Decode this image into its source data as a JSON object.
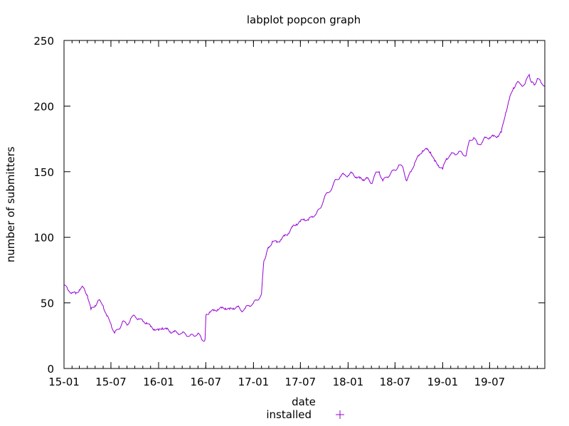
{
  "chart_data": {
    "type": "line",
    "title": "labplot popcon graph",
    "xlabel": "date",
    "ylabel": "number of submitters",
    "ylim": [
      0,
      250
    ],
    "yticks": [
      0,
      50,
      100,
      150,
      200,
      250
    ],
    "xlim": [
      "2015-01-01",
      "2020-01-30"
    ],
    "xticks": [
      {
        "date": "2015-01-01",
        "label": "15-01"
      },
      {
        "date": "2015-07-01",
        "label": "15-07"
      },
      {
        "date": "2016-01-01",
        "label": "16-01"
      },
      {
        "date": "2016-07-01",
        "label": "16-07"
      },
      {
        "date": "2017-01-01",
        "label": "17-01"
      },
      {
        "date": "2017-07-01",
        "label": "17-07"
      },
      {
        "date": "2018-01-01",
        "label": "18-01"
      },
      {
        "date": "2018-07-01",
        "label": "18-07"
      },
      {
        "date": "2019-01-01",
        "label": "19-01"
      },
      {
        "date": "2019-07-01",
        "label": "19-07"
      }
    ],
    "grid": false,
    "legend_position": "bottom-center",
    "series": [
      {
        "name": "installed",
        "color": "#9400d3",
        "marker": "+",
        "points": [
          [
            "2015-01-01",
            64
          ],
          [
            "2015-01-15",
            60
          ],
          [
            "2015-02-01",
            58
          ],
          [
            "2015-02-15",
            57
          ],
          [
            "2015-03-01",
            60
          ],
          [
            "2015-03-15",
            62
          ],
          [
            "2015-04-01",
            56
          ],
          [
            "2015-04-15",
            45
          ],
          [
            "2015-05-01",
            48
          ],
          [
            "2015-05-15",
            52
          ],
          [
            "2015-06-01",
            48
          ],
          [
            "2015-06-15",
            40
          ],
          [
            "2015-07-01",
            34
          ],
          [
            "2015-07-15",
            27
          ],
          [
            "2015-08-01",
            30
          ],
          [
            "2015-08-15",
            36
          ],
          [
            "2015-09-01",
            33
          ],
          [
            "2015-09-15",
            38
          ],
          [
            "2015-10-01",
            40
          ],
          [
            "2015-10-15",
            38
          ],
          [
            "2015-11-01",
            36
          ],
          [
            "2015-11-15",
            35
          ],
          [
            "2015-12-01",
            32
          ],
          [
            "2015-12-15",
            30
          ],
          [
            "2016-01-01",
            29
          ],
          [
            "2016-01-15",
            31
          ],
          [
            "2016-02-01",
            30
          ],
          [
            "2016-02-15",
            28
          ],
          [
            "2016-03-01",
            28
          ],
          [
            "2016-03-15",
            27
          ],
          [
            "2016-04-01",
            27
          ],
          [
            "2016-04-15",
            26
          ],
          [
            "2016-05-01",
            25
          ],
          [
            "2016-05-15",
            25
          ],
          [
            "2016-06-01",
            27
          ],
          [
            "2016-06-15",
            22
          ],
          [
            "2016-06-28",
            22
          ],
          [
            "2016-07-02",
            41
          ],
          [
            "2016-07-15",
            43
          ],
          [
            "2016-08-01",
            44
          ],
          [
            "2016-08-15",
            45
          ],
          [
            "2016-09-01",
            46
          ],
          [
            "2016-09-15",
            46
          ],
          [
            "2016-10-01",
            45
          ],
          [
            "2016-10-15",
            46
          ],
          [
            "2016-11-01",
            47
          ],
          [
            "2016-11-15",
            44
          ],
          [
            "2016-12-01",
            46
          ],
          [
            "2016-12-15",
            48
          ],
          [
            "2017-01-01",
            50
          ],
          [
            "2017-01-15",
            52
          ],
          [
            "2017-02-01",
            57
          ],
          [
            "2017-02-10",
            82
          ],
          [
            "2017-02-20",
            88
          ],
          [
            "2017-03-01",
            92
          ],
          [
            "2017-03-15",
            97
          ],
          [
            "2017-04-01",
            96
          ],
          [
            "2017-04-15",
            98
          ],
          [
            "2017-05-01",
            101
          ],
          [
            "2017-05-15",
            103
          ],
          [
            "2017-06-01",
            108
          ],
          [
            "2017-06-15",
            110
          ],
          [
            "2017-07-01",
            112
          ],
          [
            "2017-07-15",
            114
          ],
          [
            "2017-08-01",
            113
          ],
          [
            "2017-08-15",
            116
          ],
          [
            "2017-09-01",
            118
          ],
          [
            "2017-09-15",
            122
          ],
          [
            "2017-10-01",
            130
          ],
          [
            "2017-10-15",
            134
          ],
          [
            "2017-11-01",
            138
          ],
          [
            "2017-11-15",
            144
          ],
          [
            "2017-12-01",
            146
          ],
          [
            "2017-12-15",
            148
          ],
          [
            "2018-01-01",
            147
          ],
          [
            "2018-01-15",
            149
          ],
          [
            "2018-02-01",
            146
          ],
          [
            "2018-02-15",
            145
          ],
          [
            "2018-03-01",
            144
          ],
          [
            "2018-03-15",
            145
          ],
          [
            "2018-04-01",
            141
          ],
          [
            "2018-04-15",
            148
          ],
          [
            "2018-05-01",
            150
          ],
          [
            "2018-05-15",
            143
          ],
          [
            "2018-06-01",
            146
          ],
          [
            "2018-06-15",
            149
          ],
          [
            "2018-07-01",
            151
          ],
          [
            "2018-07-15",
            155
          ],
          [
            "2018-08-01",
            153
          ],
          [
            "2018-08-15",
            143
          ],
          [
            "2018-09-01",
            150
          ],
          [
            "2018-09-15",
            157
          ],
          [
            "2018-10-01",
            162
          ],
          [
            "2018-10-15",
            166
          ],
          [
            "2018-11-01",
            167
          ],
          [
            "2018-11-15",
            165
          ],
          [
            "2018-12-01",
            158
          ],
          [
            "2018-12-15",
            155
          ],
          [
            "2019-01-01",
            152
          ],
          [
            "2019-01-15",
            160
          ],
          [
            "2019-02-01",
            163
          ],
          [
            "2019-02-15",
            164
          ],
          [
            "2019-03-01",
            164
          ],
          [
            "2019-03-15",
            165
          ],
          [
            "2019-04-01",
            162
          ],
          [
            "2019-04-15",
            174
          ],
          [
            "2019-05-01",
            176
          ],
          [
            "2019-05-15",
            171
          ],
          [
            "2019-06-01",
            172
          ],
          [
            "2019-06-15",
            176
          ],
          [
            "2019-07-01",
            176
          ],
          [
            "2019-07-15",
            177
          ],
          [
            "2019-08-01",
            177
          ],
          [
            "2019-08-15",
            180
          ],
          [
            "2019-09-01",
            195
          ],
          [
            "2019-09-15",
            205
          ],
          [
            "2019-10-01",
            214
          ],
          [
            "2019-10-15",
            218
          ],
          [
            "2019-11-01",
            216
          ],
          [
            "2019-11-15",
            217
          ],
          [
            "2019-12-01",
            224
          ],
          [
            "2019-12-10",
            218
          ],
          [
            "2019-12-20",
            216
          ],
          [
            "2020-01-01",
            221
          ],
          [
            "2020-01-15",
            218
          ],
          [
            "2020-01-30",
            216
          ]
        ]
      }
    ]
  }
}
